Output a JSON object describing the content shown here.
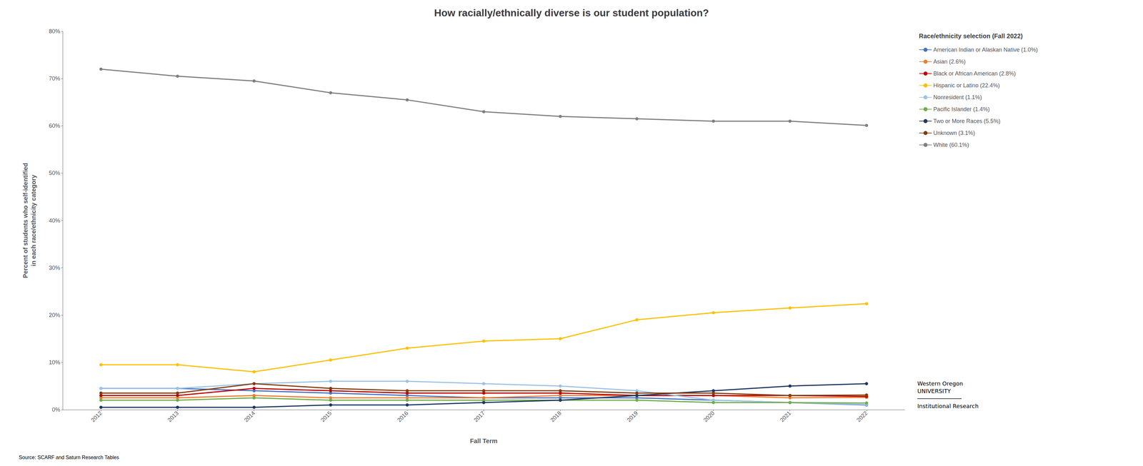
{
  "chart_data": {
    "type": "line",
    "title": "How racially/ethnically diverse is our student population?",
    "x_label": "Fall Term",
    "y_label": "Percent of students who self-identified\nin each race/ethnicity category",
    "categories": [
      "2012",
      "2013",
      "2014",
      "2015",
      "2016",
      "2017",
      "2018",
      "2019",
      "2020",
      "2021",
      "2022"
    ],
    "series": [
      {
        "name": "American Indian or Alaskan Native (1.0%)",
        "color": "#4472C4",
        "values": [
          4.5,
          4.5,
          4.0,
          3.5,
          3.0,
          2.5,
          2.5,
          2.5,
          2.0,
          1.5,
          1.0
        ]
      },
      {
        "name": "Asian (2.6%)",
        "color": "#ED7D31",
        "values": [
          2.5,
          2.5,
          3.0,
          2.5,
          2.5,
          2.5,
          3.0,
          3.0,
          3.0,
          2.5,
          2.6
        ]
      },
      {
        "name": "Black or African American (2.8%)",
        "color": "#C00000",
        "values": [
          3.0,
          3.0,
          4.5,
          4.0,
          3.5,
          3.5,
          3.5,
          3.0,
          3.0,
          3.0,
          2.8
        ]
      },
      {
        "name": "Hispanic or Latino (22.4%)",
        "color": "#FFC000",
        "values": [
          9.5,
          9.5,
          8.0,
          10.5,
          13.0,
          14.5,
          15.0,
          19.0,
          20.5,
          21.5,
          22.4
        ]
      },
      {
        "name": "Nonresident (1.1%)",
        "color": "#9DC3E6",
        "values": [
          4.5,
          4.5,
          5.5,
          6.0,
          6.0,
          5.5,
          5.0,
          4.0,
          2.0,
          1.5,
          1.1
        ]
      },
      {
        "name": "Pacific Islander (1.4%)",
        "color": "#70AD47",
        "values": [
          2.0,
          2.0,
          2.5,
          2.0,
          2.0,
          2.0,
          2.0,
          2.0,
          1.5,
          1.5,
          1.4
        ]
      },
      {
        "name": "Two or More Races (5.5%)",
        "color": "#203864",
        "values": [
          0.5,
          0.5,
          0.5,
          1.0,
          1.0,
          1.5,
          2.0,
          3.0,
          4.0,
          5.0,
          5.5
        ]
      },
      {
        "name": "Unknown (3.1%)",
        "color": "#843C0C",
        "values": [
          3.5,
          3.5,
          5.5,
          4.5,
          4.0,
          4.0,
          4.0,
          3.5,
          3.5,
          3.0,
          3.1
        ]
      },
      {
        "name": "White (60.1%)",
        "color": "#808080",
        "values": [
          72.0,
          70.5,
          69.5,
          67.0,
          65.5,
          63.0,
          62.0,
          61.5,
          61.0,
          61.0,
          60.1
        ]
      }
    ],
    "ylim": [
      0,
      80
    ],
    "yticks": [
      {
        "value": 0,
        "label": "0%"
      },
      {
        "value": 10,
        "label": "10%"
      },
      {
        "value": 20,
        "label": "20%"
      },
      {
        "value": 30,
        "label": "30%"
      },
      {
        "value": 40,
        "label": "40%"
      },
      {
        "value": 50,
        "label": "50%"
      },
      {
        "value": 60,
        "label": "60%"
      },
      {
        "value": 70,
        "label": "70%"
      },
      {
        "value": 80,
        "label": "80%"
      }
    ],
    "grid": false,
    "legend": "right",
    "legend_title": "Race/ethnicity selection (Fall 2022)",
    "marker": "circle",
    "annotations": [
      "Source: SCARF and Saturn Research Tables",
      "Western Oregon\nUNIVERSITY\n─────────────\nInstitutional Research"
    ]
  }
}
